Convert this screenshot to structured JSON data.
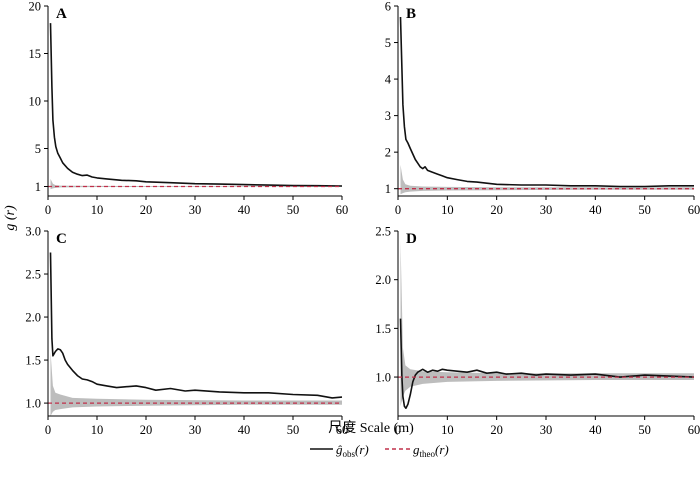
{
  "figure": {
    "ylabel_main": "g",
    "ylabel_arg": "(r)",
    "xlabel": "尺度 Scale (m)",
    "legend": {
      "obs_label": "ĝobs(r)",
      "theo_label": "gtheo(r)"
    }
  },
  "colors": {
    "observed": "#111111",
    "theoretical": "#c0304a",
    "envelope": "#bdbdbd",
    "axis": "#000000"
  },
  "chart_data": [
    {
      "panel": "A",
      "type": "line",
      "xlim": [
        0,
        60
      ],
      "ylim": [
        0,
        20
      ],
      "xticks": [
        0,
        10,
        20,
        30,
        40,
        50,
        60
      ],
      "yticks": [
        1,
        5,
        10,
        15,
        20
      ],
      "ytick_labels": [
        "1",
        "5",
        "10",
        "15",
        "20"
      ],
      "series": [
        {
          "role": "observed",
          "x": [
            0.5,
            0.8,
            1.0,
            1.3,
            1.6,
            2.0,
            2.5,
            3.0,
            4,
            5,
            6,
            7,
            8,
            9,
            10,
            12,
            15,
            18,
            20,
            25,
            30,
            35,
            40,
            45,
            50,
            55,
            60
          ],
          "y": [
            18.2,
            11.5,
            8.0,
            6.2,
            5.2,
            4.5,
            4.0,
            3.5,
            2.9,
            2.5,
            2.3,
            2.15,
            2.2,
            2.0,
            1.9,
            1.8,
            1.65,
            1.6,
            1.5,
            1.4,
            1.3,
            1.25,
            1.2,
            1.15,
            1.1,
            1.08,
            1.05
          ]
        },
        {
          "role": "theoretical",
          "x": [
            0,
            60
          ],
          "y": [
            1,
            1
          ]
        }
      ],
      "envelope": {
        "x": [
          0.5,
          1.0,
          1.5,
          2.5,
          5,
          10,
          20,
          40,
          60
        ],
        "lower": [
          0.7,
          0.8,
          0.85,
          0.9,
          0.93,
          0.95,
          0.96,
          0.97,
          0.97
        ],
        "upper": [
          1.8,
          1.3,
          1.15,
          1.1,
          1.08,
          1.06,
          1.05,
          1.04,
          1.04
        ]
      }
    },
    {
      "panel": "B",
      "type": "line",
      "xlim": [
        0,
        60
      ],
      "ylim": [
        0.8,
        6.0
      ],
      "xticks": [
        0,
        10,
        20,
        30,
        40,
        50,
        60
      ],
      "yticks": [
        1,
        2,
        3,
        4,
        5,
        6
      ],
      "ytick_labels": [
        "1",
        "2",
        "3",
        "4",
        "5",
        "6"
      ],
      "series": [
        {
          "role": "observed",
          "x": [
            0.5,
            0.8,
            1.0,
            1.3,
            1.6,
            2.0,
            2.5,
            3.0,
            3.5,
            4,
            4.5,
            5,
            5.5,
            6,
            7,
            8,
            9,
            10,
            12,
            14,
            16,
            18,
            20,
            25,
            30,
            35,
            40,
            45,
            50,
            55,
            60
          ],
          "y": [
            5.7,
            4.3,
            3.3,
            2.7,
            2.35,
            2.25,
            2.1,
            1.95,
            1.8,
            1.7,
            1.6,
            1.55,
            1.6,
            1.5,
            1.45,
            1.4,
            1.35,
            1.3,
            1.25,
            1.2,
            1.18,
            1.15,
            1.12,
            1.1,
            1.1,
            1.08,
            1.08,
            1.06,
            1.06,
            1.08,
            1.08
          ]
        },
        {
          "role": "theoretical",
          "x": [
            0,
            60
          ],
          "y": [
            1,
            1
          ]
        }
      ],
      "envelope": {
        "x": [
          0.5,
          1.0,
          1.5,
          2.5,
          5,
          10,
          20,
          40,
          60
        ],
        "lower": [
          0.85,
          0.88,
          0.9,
          0.92,
          0.94,
          0.95,
          0.96,
          0.97,
          0.97
        ],
        "upper": [
          1.65,
          1.25,
          1.12,
          1.08,
          1.06,
          1.05,
          1.04,
          1.04,
          1.04
        ]
      }
    },
    {
      "panel": "C",
      "type": "line",
      "xlim": [
        0,
        60
      ],
      "ylim": [
        0.85,
        3.0
      ],
      "xticks": [
        0,
        10,
        20,
        30,
        40,
        50,
        60
      ],
      "yticks": [
        1.0,
        1.5,
        2.0,
        2.5,
        3.0
      ],
      "ytick_labels": [
        "1.0",
        "1.5",
        "2.0",
        "2.5",
        "3.0"
      ],
      "series": [
        {
          "role": "observed",
          "x": [
            0.5,
            0.8,
            1.0,
            1.5,
            2.0,
            2.5,
            3.0,
            3.5,
            4,
            5,
            6,
            7,
            8,
            9,
            10,
            12,
            14,
            16,
            18,
            20,
            22,
            25,
            28,
            30,
            35,
            40,
            45,
            50,
            55,
            58,
            60
          ],
          "y": [
            2.75,
            1.75,
            1.55,
            1.6,
            1.63,
            1.62,
            1.58,
            1.5,
            1.45,
            1.38,
            1.32,
            1.28,
            1.27,
            1.25,
            1.22,
            1.2,
            1.18,
            1.19,
            1.2,
            1.18,
            1.15,
            1.17,
            1.14,
            1.15,
            1.13,
            1.12,
            1.12,
            1.1,
            1.09,
            1.06,
            1.07
          ]
        },
        {
          "role": "theoretical",
          "x": [
            0,
            60
          ],
          "y": [
            1,
            1
          ]
        }
      ],
      "envelope": {
        "x": [
          0.5,
          1.0,
          1.5,
          2.5,
          5,
          10,
          20,
          40,
          60
        ],
        "lower": [
          0.85,
          0.9,
          0.92,
          0.93,
          0.95,
          0.96,
          0.97,
          0.98,
          0.98
        ],
        "upper": [
          1.6,
          1.2,
          1.12,
          1.1,
          1.06,
          1.05,
          1.04,
          1.03,
          1.03
        ]
      }
    },
    {
      "panel": "D",
      "type": "line",
      "xlim": [
        0,
        60
      ],
      "ylim": [
        0.6,
        2.5
      ],
      "xticks": [
        0,
        10,
        20,
        30,
        40,
        50,
        60
      ],
      "yticks": [
        1.0,
        1.5,
        2.0,
        2.5
      ],
      "ytick_labels": [
        "1.0",
        "1.5",
        "2.0",
        "2.5"
      ],
      "series": [
        {
          "role": "observed",
          "x": [
            0.5,
            0.8,
            1.0,
            1.3,
            1.6,
            2.0,
            2.5,
            3.0,
            3.5,
            4,
            5,
            6,
            7,
            8,
            9,
            10,
            12,
            14,
            16,
            18,
            20,
            22,
            25,
            28,
            30,
            35,
            40,
            45,
            50,
            55,
            60
          ],
          "y": [
            1.6,
            1.0,
            0.8,
            0.7,
            0.68,
            0.72,
            0.82,
            0.95,
            1.02,
            1.05,
            1.08,
            1.05,
            1.07,
            1.06,
            1.08,
            1.07,
            1.06,
            1.05,
            1.07,
            1.04,
            1.05,
            1.03,
            1.04,
            1.02,
            1.03,
            1.02,
            1.03,
            1.0,
            1.02,
            1.01,
            1.0
          ]
        },
        {
          "role": "theoretical",
          "x": [
            0,
            60
          ],
          "y": [
            1,
            1
          ]
        }
      ],
      "envelope": {
        "x": [
          0.5,
          1.0,
          1.5,
          2.5,
          5,
          10,
          20,
          40,
          60
        ],
        "lower": [
          0.7,
          0.8,
          0.86,
          0.9,
          0.93,
          0.95,
          0.96,
          0.97,
          0.97
        ],
        "upper": [
          2.4,
          1.3,
          1.12,
          1.08,
          1.06,
          1.05,
          1.04,
          1.04,
          1.04
        ]
      }
    }
  ]
}
